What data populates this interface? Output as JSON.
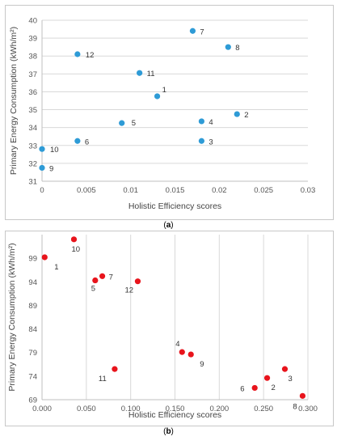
{
  "chart_data": [
    {
      "type": "scatter",
      "caption": "a",
      "xlabel": "Holistic Efficiency scores",
      "ylabel": "Primary Energy Consumption (kWh/m²)",
      "xlim": [
        0,
        0.03
      ],
      "ylim": [
        31,
        40
      ],
      "x_ticks": [
        "0",
        "0.005",
        "0.01",
        "0.015",
        "0.02",
        "0.025",
        "0.03"
      ],
      "y_ticks": [
        "31",
        "32",
        "33",
        "34",
        "35",
        "36",
        "37",
        "38",
        "39",
        "40"
      ],
      "grid": "horizontal",
      "marker_color": "#2e9bd6",
      "points": [
        {
          "label": "1",
          "x": 0.013,
          "y": 35.75
        },
        {
          "label": "2",
          "x": 0.022,
          "y": 34.75
        },
        {
          "label": "3",
          "x": 0.018,
          "y": 33.25
        },
        {
          "label": "4",
          "x": 0.018,
          "y": 34.35
        },
        {
          "label": "5",
          "x": 0.009,
          "y": 34.25
        },
        {
          "label": "6",
          "x": 0.004,
          "y": 33.25
        },
        {
          "label": "7",
          "x": 0.017,
          "y": 39.4
        },
        {
          "label": "8",
          "x": 0.021,
          "y": 38.5
        },
        {
          "label": "9",
          "x": 0.0,
          "y": 31.75
        },
        {
          "label": "10",
          "x": 0.0,
          "y": 32.8
        },
        {
          "label": "11",
          "x": 0.011,
          "y": 37.05
        },
        {
          "label": "12",
          "x": 0.004,
          "y": 38.1
        }
      ]
    },
    {
      "type": "scatter",
      "caption": "b",
      "xlabel": "Holistic Efficiency scores",
      "ylabel": "Primary Energy Consumption (kWh/m²)",
      "xlim": [
        0,
        0.3
      ],
      "ylim": [
        69,
        104
      ],
      "x_ticks": [
        "0.000",
        "0.050",
        "0.100",
        "0.150",
        "0.200",
        "0.250",
        "0.300"
      ],
      "y_ticks": [
        "69",
        "74",
        "79",
        "84",
        "89",
        "94",
        "99"
      ],
      "y_tick_values": [
        69,
        74,
        79,
        84,
        89,
        94,
        99
      ],
      "grid": "vertical",
      "marker_color": "#e8141c",
      "points": [
        {
          "label": "1",
          "x": 0.003,
          "y": 99.2
        },
        {
          "label": "2",
          "x": 0.254,
          "y": 73.6
        },
        {
          "label": "3",
          "x": 0.274,
          "y": 75.5
        },
        {
          "label": "4",
          "x": 0.158,
          "y": 79.1
        },
        {
          "label": "5",
          "x": 0.06,
          "y": 94.3
        },
        {
          "label": "6",
          "x": 0.24,
          "y": 71.5
        },
        {
          "label": "7",
          "x": 0.068,
          "y": 95.2
        },
        {
          "label": "8",
          "x": 0.294,
          "y": 69.8
        },
        {
          "label": "9",
          "x": 0.168,
          "y": 78.6
        },
        {
          "label": "10",
          "x": 0.036,
          "y": 103.0
        },
        {
          "label": "11",
          "x": 0.082,
          "y": 75.5
        },
        {
          "label": "12",
          "x": 0.108,
          "y": 94.1
        }
      ]
    }
  ]
}
